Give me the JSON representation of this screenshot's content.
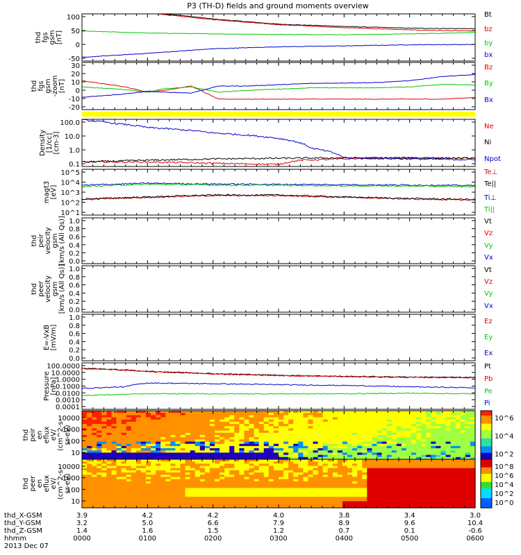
{
  "title": "P3 (TH-D) fields and ground moments overview",
  "colors": {
    "black": "#000000",
    "red": "#e00000",
    "green": "#00c800",
    "blue": "#0000d0",
    "yellow": "#ffff00"
  },
  "chart_data": [
    {
      "type": "line",
      "panel": "fgs_gsm_top",
      "ylabel": [
        "thd",
        "fgs",
        "gsm",
        "[nT]"
      ],
      "yticks": [
        "100",
        "50",
        "0",
        "-50"
      ],
      "ylim": [
        -65,
        100
      ],
      "series": [
        {
          "name": "Bt",
          "color": "black",
          "x": [
            0,
            60,
            90,
            120,
            180,
            240,
            300,
            360
          ],
          "y": [
            105,
            104,
            95,
            82,
            64,
            56,
            50,
            48
          ]
        },
        {
          "name": "bz",
          "color": "red",
          "x": [
            0,
            60,
            90,
            120,
            180,
            240,
            300,
            360
          ],
          "y": [
            110,
            104,
            92,
            80,
            62,
            52,
            44,
            40
          ]
        },
        {
          "name": "by",
          "color": "green",
          "x": [
            0,
            60,
            120,
            180,
            240,
            300,
            360
          ],
          "y": [
            40,
            33,
            30,
            28,
            27,
            30,
            35
          ]
        },
        {
          "name": "bx",
          "color": "blue",
          "x": [
            0,
            60,
            120,
            180,
            240,
            300,
            360
          ],
          "y": [
            -52,
            -38,
            -22,
            -15,
            -12,
            -8,
            -7
          ]
        }
      ]
    },
    {
      "type": "line",
      "panel": "fgs_gsm_bottom",
      "ylabel": [
        "thd",
        "fgs",
        "gsm",
        "-zoom",
        "[nT]"
      ],
      "yticks": [
        "30",
        "20",
        "10",
        "0",
        "-10",
        "-20"
      ],
      "ylim": [
        -22,
        32
      ],
      "series": [
        {
          "name": "Bz",
          "color": "red",
          "x": [
            0,
            40,
            60,
            75,
            100,
            125,
            150,
            210,
            270,
            300,
            330,
            360
          ],
          "y": [
            11,
            4,
            -2,
            0,
            5,
            -10,
            -10,
            -10,
            -10,
            -10,
            -10,
            -8
          ]
        },
        {
          "name": "By",
          "color": "green",
          "x": [
            0,
            40,
            60,
            75,
            100,
            125,
            150,
            210,
            270,
            300,
            330,
            360
          ],
          "y": [
            4,
            1,
            -2,
            2,
            4,
            -2,
            0,
            3,
            3,
            4,
            7,
            6
          ]
        },
        {
          "name": "Bx",
          "color": "blue",
          "x": [
            0,
            40,
            60,
            75,
            100,
            125,
            150,
            210,
            270,
            300,
            330,
            360
          ],
          "y": [
            -8,
            -4,
            -1,
            -2,
            -3,
            5,
            5,
            8,
            9,
            11,
            16,
            18
          ]
        }
      ]
    },
    {
      "type": "line",
      "panel": "density",
      "ylabel": [
        "Density",
        "[1/cc]",
        "[cm-3]"
      ],
      "yticks": [
        "100.0",
        "10.0",
        "1.0",
        "0.1"
      ],
      "ylim": [
        0.07,
        200
      ],
      "log": true,
      "series": [
        {
          "name": "Ne",
          "color": "red",
          "x": [
            0,
            60,
            120,
            180,
            200,
            240,
            300,
            360
          ],
          "y": [
            0.15,
            0.15,
            0.12,
            0.1,
            0.2,
            0.25,
            0.3,
            0.28
          ]
        },
        {
          "name": "Ni",
          "color": "black",
          "x": [
            0,
            60,
            120,
            180,
            240,
            300,
            360
          ],
          "y": [
            0.15,
            0.2,
            0.25,
            0.28,
            0.3,
            0.3,
            0.28
          ]
        },
        {
          "name": "Npot",
          "color": "blue",
          "x": [
            0,
            30,
            60,
            120,
            180,
            210,
            240,
            300,
            360
          ],
          "y": [
            180,
            100,
            50,
            20,
            8,
            1.5,
            0.3,
            0.25,
            0.22
          ]
        }
      ]
    },
    {
      "type": "line",
      "panel": "temperature",
      "ylabel": [
        "magt3",
        "[eV]"
      ],
      "yticks": [
        "10^5",
        "10^4",
        "10^3",
        "10^2",
        "10^1"
      ],
      "ylim": [
        10,
        100000
      ],
      "log": true,
      "series": [
        {
          "name": "Te⊥",
          "color": "red",
          "x": [
            0,
            60,
            120,
            180,
            240,
            300,
            360
          ],
          "y": [
            220,
            350,
            500,
            500,
            350,
            250,
            200
          ]
        },
        {
          "name": "Te||",
          "color": "black",
          "x": [
            0,
            60,
            120,
            180,
            240,
            300,
            360
          ],
          "y": [
            250,
            380,
            560,
            560,
            380,
            280,
            230
          ]
        },
        {
          "name": "Ti⊥",
          "color": "blue",
          "x": [
            0,
            60,
            120,
            180,
            240,
            300,
            360
          ],
          "y": [
            4000,
            6000,
            5200,
            4800,
            4500,
            4200,
            3800
          ]
        },
        {
          "name": "Ti||",
          "color": "green",
          "x": [
            0,
            60,
            120,
            180,
            240,
            300,
            360
          ],
          "y": [
            3000,
            5000,
            4200,
            4000,
            3600,
            3400,
            3000
          ]
        }
      ]
    },
    {
      "type": "line",
      "panel": "peir_velocity",
      "ylabel": [
        "thd",
        "peir",
        "velocity",
        "gsm",
        "[km/s (All Qs)]"
      ],
      "yticks": [
        "1.0",
        "0.8",
        "0.6",
        "0.4",
        "0.2",
        "0.0"
      ],
      "ylim": [
        0,
        1
      ],
      "series": [
        {
          "name": "Vt",
          "color": "black"
        },
        {
          "name": "Vz",
          "color": "red"
        },
        {
          "name": "Vy",
          "color": "green"
        },
        {
          "name": "Vx",
          "color": "blue"
        }
      ]
    },
    {
      "type": "line",
      "panel": "peer_velocity",
      "ylabel": [
        "thd",
        "peer",
        "velocity",
        "gsm",
        "[km/s (All Qs)]"
      ],
      "yticks": [
        "1.0",
        "0.8",
        "0.6",
        "0.4",
        "0.2",
        "0.0"
      ],
      "ylim": [
        0,
        1
      ],
      "series": [
        {
          "name": "Vt",
          "color": "black"
        },
        {
          "name": "Vz",
          "color": "red"
        },
        {
          "name": "Vy",
          "color": "green"
        },
        {
          "name": "Vx",
          "color": "blue"
        }
      ]
    },
    {
      "type": "line",
      "panel": "efield",
      "ylabel": [
        "E=-VxB",
        "[mV/m]"
      ],
      "yticks": [
        "1.0",
        "0.8",
        "0.6",
        "0.4",
        "0.2",
        "0.0"
      ],
      "ylim": [
        0,
        1
      ],
      "series": [
        {
          "name": "Ez",
          "color": "red"
        },
        {
          "name": "Ey",
          "color": "green"
        },
        {
          "name": "Ex",
          "color": "blue"
        }
      ]
    },
    {
      "type": "line",
      "panel": "pressure",
      "ylabel": [
        "Pressure",
        "[nPa]"
      ],
      "yticks": [
        "100.0000",
        "10.0000",
        "1.0000",
        "0.1000",
        "0.0100",
        "0.0010",
        "0.0001"
      ],
      "ylim": [
        0.0001,
        100
      ],
      "log": true,
      "series": [
        {
          "name": "Pt",
          "color": "black",
          "x": [
            0,
            60,
            120,
            180,
            240,
            300,
            360
          ],
          "y": [
            20,
            8,
            4,
            2.5,
            1.8,
            1.5,
            1.3
          ]
        },
        {
          "name": "Pb",
          "color": "red",
          "x": [
            0,
            60,
            120,
            180,
            240,
            300,
            360
          ],
          "y": [
            18,
            7,
            3.5,
            2.2,
            1.6,
            1.3,
            1.2
          ]
        },
        {
          "name": "Pe",
          "color": "green",
          "x": [
            0,
            60,
            120,
            180,
            240,
            300,
            360
          ],
          "y": [
            0.006,
            0.01,
            0.01,
            0.01,
            0.01,
            0.012,
            0.01
          ]
        },
        {
          "name": "Pi",
          "color": "blue",
          "x": [
            0,
            40,
            60,
            120,
            180,
            240,
            300,
            360
          ],
          "y": [
            0.05,
            0.08,
            0.25,
            0.2,
            0.15,
            0.12,
            0.08,
            0.06
          ]
        }
      ]
    },
    {
      "type": "heatmap",
      "panel": "peir_spectrogram",
      "ylabel": [
        "thd",
        "peir",
        "en",
        "eflux",
        "eV/",
        "(cm^2-s-",
        "sr-eV)"
      ],
      "yticks": [
        "10000",
        "1000",
        "100",
        "10"
      ],
      "colorbar": [
        "10^6",
        "10^4",
        "10^2"
      ]
    },
    {
      "type": "heatmap",
      "panel": "peer_spectrogram",
      "ylabel": [
        "thd",
        "peer",
        "en",
        "eflux",
        "eV/",
        "(cm^2-s-",
        "sr-eV)"
      ],
      "yticks": [
        "10000",
        "1000",
        "100",
        "10"
      ],
      "colorbar": [
        "10^8",
        "10^6",
        "10^4",
        "10^2",
        "10^0"
      ]
    }
  ],
  "legend_labels": {
    "p1": [
      "Bt",
      "bz",
      "by",
      "bx"
    ],
    "p2": [
      "Bz",
      "By",
      "Bx"
    ],
    "p3": [
      "Ne",
      "Ni",
      "Npot"
    ],
    "p4": [
      "Te⊥",
      "Te||",
      "Ti⊥",
      "Ti||"
    ],
    "p5": [
      "Vt",
      "Vz",
      "Vy",
      "Vx"
    ],
    "p6": [
      "Vt",
      "Vz",
      "Vy",
      "Vx"
    ],
    "p7": [
      "Ez",
      "Ey",
      "Ex"
    ],
    "p8": [
      "Pt",
      "Pb",
      "Pe",
      "Pi"
    ]
  },
  "xaxis": {
    "rows": [
      {
        "label": "thd_X-GSM",
        "values": [
          "3.9",
          "4.2",
          "4.2",
          "4.0",
          "3.8",
          "3.4",
          "3.0"
        ]
      },
      {
        "label": "thd_Y-GSM",
        "values": [
          "3.2",
          "5.0",
          "6.6",
          "7.9",
          "8.9",
          "9.6",
          "10.4"
        ]
      },
      {
        "label": "thd_Z-GSM",
        "values": [
          "1.4",
          "1.6",
          "1.5",
          "1.2",
          "0.7",
          "0.1",
          "-0.6"
        ]
      },
      {
        "label": "hhmm",
        "values": [
          "0000",
          "0100",
          "0200",
          "0300",
          "0400",
          "0500",
          "0600"
        ]
      }
    ],
    "date": "2013 Dec 07"
  }
}
